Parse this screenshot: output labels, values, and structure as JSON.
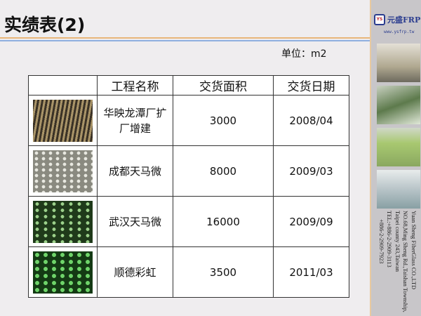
{
  "title": "实绩表(2)",
  "unit_label": "单位：m2",
  "logo": {
    "name": "元盛FRP",
    "url": "www.ysfrp.tw",
    "mark": "YS"
  },
  "company": {
    "name": "Yuan Sheng FiberGlass CO.,LTD",
    "address1": "NO.68,Ming Sheng Rd.,Taishan Township,",
    "address2": "Taipei county 243,Taiwan",
    "tel1": "TEL:+886-2-2909-3113",
    "tel2": "+886-2-2909-7923"
  },
  "table": {
    "headers": [
      "",
      "工程名称",
      "交货面积",
      "交货日期"
    ],
    "rows": [
      {
        "name": "华映龙潭厂扩厂增建",
        "area": "3000",
        "date": "2008/04"
      },
      {
        "name": "成都天马微",
        "area": "8000",
        "date": "2009/03"
      },
      {
        "name": "武汉天马微",
        "area": "16000",
        "date": "2009/09"
      },
      {
        "name": "顺德彩虹",
        "area": "3500",
        "date": "2011/03"
      }
    ]
  },
  "colors": {
    "accent_orange": "#e8b67a",
    "accent_blue": "#8fb0e0",
    "brand_blue": "#2b3d8f"
  }
}
